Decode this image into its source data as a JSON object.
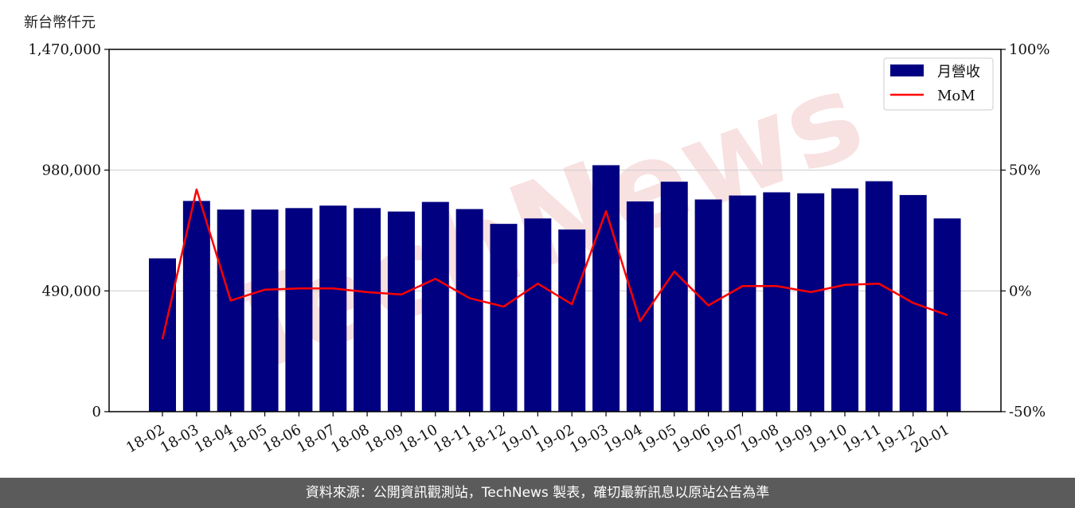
{
  "unit_label": "新台幣仟元",
  "footer_text": "資料來源：公開資訊觀測站，TechNews 製表，確切最新訊息以原站公告為準",
  "watermark_text": "TechNews",
  "chart_data": {
    "type": "bar",
    "categories": [
      "18-02",
      "18-03",
      "18-04",
      "18-05",
      "18-06",
      "18-07",
      "18-08",
      "18-09",
      "18-10",
      "18-11",
      "18-12",
      "19-01",
      "19-02",
      "19-03",
      "19-04",
      "19-05",
      "19-06",
      "19-07",
      "19-08",
      "19-09",
      "19-10",
      "19-11",
      "19-12",
      "20-01"
    ],
    "series": [
      {
        "name": "月營收",
        "type": "bar",
        "axis": "left",
        "color": "#000080",
        "values": [
          622000,
          855000,
          820000,
          820000,
          826000,
          836000,
          826000,
          812000,
          851000,
          822000,
          762000,
          784000,
          739000,
          1000000,
          853000,
          933000,
          861000,
          877000,
          890000,
          886000,
          906000,
          935000,
          879000,
          784000
        ]
      },
      {
        "name": "MoM",
        "type": "line",
        "axis": "right",
        "color": "#ff0000",
        "values": [
          -20,
          42,
          -4,
          0.5,
          1,
          1,
          -0.5,
          -1.5,
          5,
          -3,
          -6.5,
          3,
          -5.5,
          33,
          -12.5,
          8,
          -6,
          2,
          2,
          -0.5,
          2.5,
          3,
          -5,
          -10
        ]
      }
    ],
    "y_left": {
      "ticks": [
        0,
        490000,
        980000,
        1470000
      ],
      "tick_labels": [
        "0",
        "490,000",
        "980,000",
        "1,470,000"
      ],
      "ylim": [
        0,
        1470000
      ]
    },
    "y_right": {
      "ticks": [
        -50,
        0,
        50,
        100
      ],
      "tick_labels": [
        "-50%",
        "0%",
        "50%",
        "100%"
      ],
      "ylim": [
        -50,
        100
      ]
    },
    "grid": "horizontal",
    "legend_position": "top-right"
  }
}
